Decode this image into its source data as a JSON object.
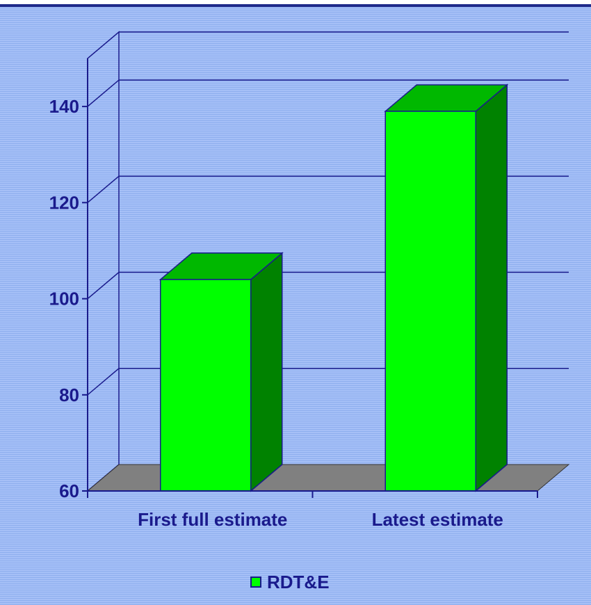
{
  "chart_data": {
    "type": "bar",
    "categories": [
      "First full estimate",
      "Latest estimate"
    ],
    "series": [
      {
        "name": "RDT&E",
        "values": [
          104,
          139
        ]
      }
    ],
    "ylim": [
      60,
      150
    ],
    "yticks": [
      60,
      80,
      100,
      120,
      140
    ],
    "grid": true,
    "legend_position": "bottom-center",
    "style": "3d"
  },
  "colors": {
    "bar_front": "#00ff00",
    "bar_top": "#00b800",
    "bar_side": "#008200",
    "floor": "#808080",
    "axis": "#1a1a8c"
  }
}
